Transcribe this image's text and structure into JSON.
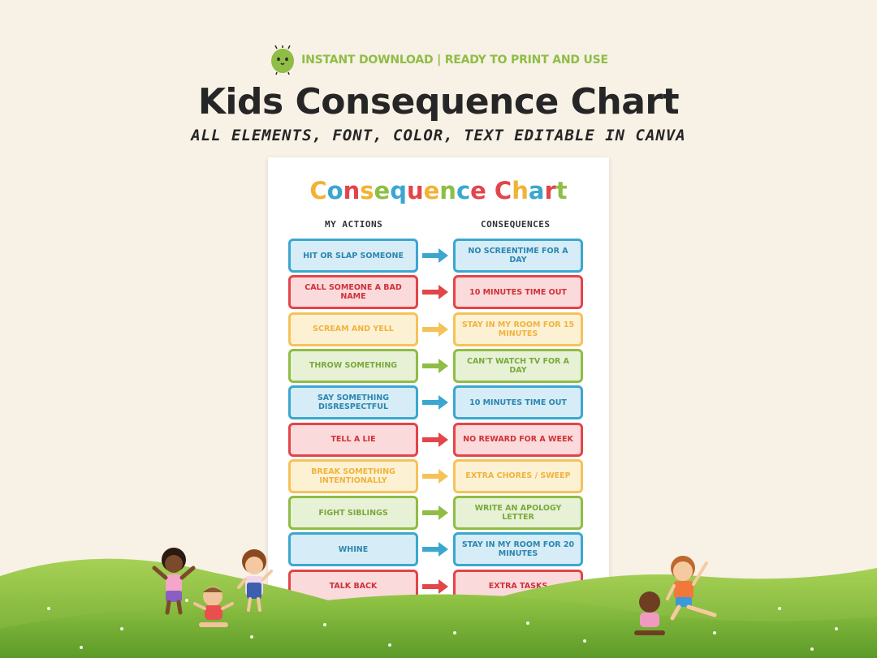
{
  "header": {
    "tagline": "INSTANT DOWNLOAD | READY TO PRINT AND USE",
    "title": "Kids Consequence Chart",
    "subtitle": "ALL ELEMENTS, FONT, COLOR, TEXT EDITABLE IN CANVA"
  },
  "sheet": {
    "title_letters": [
      {
        "ch": "C",
        "color": "#f2b233"
      },
      {
        "ch": "o",
        "color": "#3ba7d0"
      },
      {
        "ch": "n",
        "color": "#e2454a"
      },
      {
        "ch": "s",
        "color": "#f2b233"
      },
      {
        "ch": "e",
        "color": "#8fbd45"
      },
      {
        "ch": "q",
        "color": "#3ba7d0"
      },
      {
        "ch": "u",
        "color": "#e2454a"
      },
      {
        "ch": "e",
        "color": "#f2b233"
      },
      {
        "ch": "n",
        "color": "#8fbd45"
      },
      {
        "ch": "c",
        "color": "#3ba7d0"
      },
      {
        "ch": "e",
        "color": "#e2454a"
      },
      {
        "ch": " ",
        "color": "#000000"
      },
      {
        "ch": "C",
        "color": "#e2454a"
      },
      {
        "ch": "h",
        "color": "#f2b233"
      },
      {
        "ch": "a",
        "color": "#3ba7d0"
      },
      {
        "ch": "r",
        "color": "#e2454a"
      },
      {
        "ch": "t",
        "color": "#8fbd45"
      }
    ],
    "col_actions": "MY ACTIONS",
    "col_consequences": "CONSEQUENCES",
    "rows": [
      {
        "action": "HIT OR SLAP SOMEONE",
        "consequence": "NO SCREENTIME FOR A DAY",
        "theme": "blue"
      },
      {
        "action": "CALL SOMEONE A BAD NAME",
        "consequence": "10 MINUTES TIME OUT",
        "theme": "red"
      },
      {
        "action": "SCREAM AND YELL",
        "consequence": "STAY IN MY ROOM FOR 15 MINUTES",
        "theme": "yellow"
      },
      {
        "action": "THROW SOMETHING",
        "consequence": "CAN'T WATCH TV FOR A DAY",
        "theme": "green"
      },
      {
        "action": "SAY SOMETHING DISRESPECTFUL",
        "consequence": "10 MINUTES TIME OUT",
        "theme": "blue"
      },
      {
        "action": "TELL A LIE",
        "consequence": "NO REWARD FOR A WEEK",
        "theme": "red"
      },
      {
        "action": "BREAK SOMETHING INTENTIONALLY",
        "consequence": "EXTRA CHORES / SWEEP",
        "theme": "yellow"
      },
      {
        "action": "FIGHT SIBLINGS",
        "consequence": "WRITE AN APOLOGY LETTER",
        "theme": "green"
      },
      {
        "action": "WHINE",
        "consequence": "STAY IN MY ROOM FOR 20 MINUTES",
        "theme": "blue"
      },
      {
        "action": "TALK BACK",
        "consequence": "EXTRA TASKS",
        "theme": "red"
      }
    ]
  },
  "themes": {
    "blue": {
      "border": "#3ba7d0",
      "fill": "#d6ecf6",
      "text": "#2a86b0",
      "arrow": "#3ba7d0"
    },
    "red": {
      "border": "#e2454a",
      "fill": "#fbdadb",
      "text": "#cf3138",
      "arrow": "#e2454a"
    },
    "yellow": {
      "border": "#f5c25a",
      "fill": "#fdf1d4",
      "text": "#f0b33c",
      "arrow": "#f5c25a"
    },
    "green": {
      "border": "#8fbd45",
      "fill": "#e6f1d6",
      "text": "#7aa93a",
      "arrow": "#8fbd45"
    }
  },
  "colors": {
    "background": "#f7f1e6",
    "title": "#262626",
    "accent_green": "#8fbd45",
    "hill_green": "#7fba3c"
  },
  "icons": {
    "mascot": "green-bean-mascot-icon",
    "arrow": "right-arrow-icon"
  }
}
